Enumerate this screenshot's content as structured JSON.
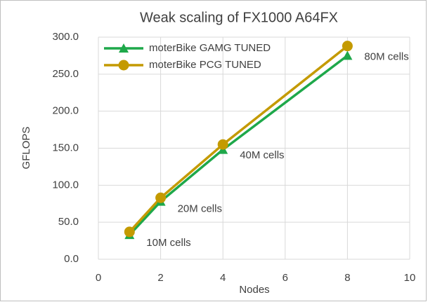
{
  "chart_data": {
    "type": "line",
    "title": "Weak scaling of FX1000 A64FX",
    "x_label": "Nodes",
    "y_label": "GFLOPS",
    "x": [
      1,
      2,
      4,
      8
    ],
    "series": [
      {
        "name": "moterBike GAMG TUNED",
        "color": "#1ea84a",
        "marker": "triangle",
        "values": [
          33,
          78,
          148,
          275
        ]
      },
      {
        "name": "moterBike PCG TUNED",
        "color": "#c49a00",
        "marker": "circle",
        "values": [
          37,
          83,
          155,
          288
        ]
      }
    ],
    "annotations": [
      "10M cells",
      "20M cells",
      "40M cells",
      "80M cells"
    ],
    "xlim": [
      0,
      10
    ],
    "xticks": [
      0,
      2,
      4,
      6,
      8,
      10
    ],
    "ylim": [
      0,
      300
    ],
    "yticks": [
      {
        "value": 0,
        "label": "0.0"
      },
      {
        "value": 50,
        "label": "50.0"
      },
      {
        "value": 100,
        "label": "100.0"
      },
      {
        "value": 150,
        "label": "150.0"
      },
      {
        "value": 200,
        "label": "200.0"
      },
      {
        "value": 250,
        "label": "250.0"
      },
      {
        "value": 300,
        "label": "300.0"
      }
    ],
    "grid": true,
    "legend": "upper left"
  }
}
